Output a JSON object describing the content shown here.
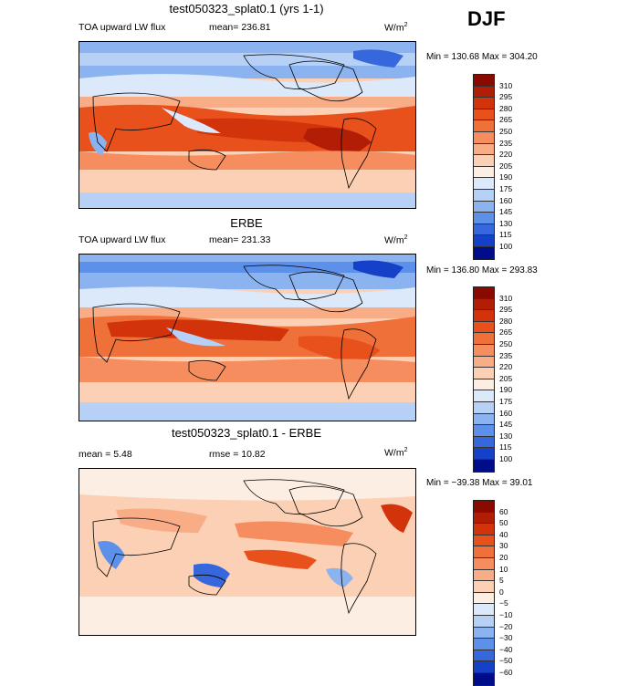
{
  "season": "DJF",
  "panels": [
    {
      "title": "test050323_splat0.1 (yrs 1-1)",
      "left_text": "TOA upward LW flux",
      "mean_text": "mean= 236.81",
      "units": "W/m",
      "units_exp": "2",
      "minmax": "Min = 130.68 Max = 304.20",
      "levels": [
        "310",
        "295",
        "280",
        "265",
        "250",
        "235",
        "220",
        "205",
        "190",
        "175",
        "160",
        "145",
        "130",
        "115",
        "100"
      ]
    },
    {
      "title": "ERBE",
      "left_text": "TOA upward LW flux",
      "mean_text": "mean= 231.33",
      "units": "W/m",
      "units_exp": "2",
      "minmax": "Min = 136.80 Max = 293.83",
      "levels": [
        "310",
        "295",
        "280",
        "265",
        "250",
        "235",
        "220",
        "205",
        "190",
        "175",
        "160",
        "145",
        "130",
        "115",
        "100"
      ]
    },
    {
      "title": "test050323_splat0.1 - ERBE",
      "left_text": "mean =    5.48",
      "mean_text": "rmse =   10.82",
      "units": "W/m",
      "units_exp": "2",
      "minmax": "Min = −39.38 Max =  39.01",
      "levels": [
        "60",
        "50",
        "40",
        "30",
        "20",
        "10",
        "5",
        "0",
        "−5",
        "−10",
        "−20",
        "−30",
        "−40",
        "−50",
        "−60"
      ]
    }
  ],
  "colors": {
    "abs_scale": [
      "#8b0a00",
      "#b11d05",
      "#d3330b",
      "#e8501c",
      "#f0703a",
      "#f58d5e",
      "#f8ad87",
      "#fbd0b4",
      "#fdeee3",
      "#dbe9fb",
      "#b6d0f6",
      "#8bb3ef",
      "#5d90e8",
      "#3767dc",
      "#1540c8",
      "#000d8a"
    ],
    "diff_scale": [
      "#8b0a00",
      "#b11d05",
      "#d3330b",
      "#e8501c",
      "#f0703a",
      "#f58d5e",
      "#f8ad87",
      "#fbd0b4",
      "#fdeee3",
      "#dbe9fb",
      "#b6d0f6",
      "#8bb3ef",
      "#5d90e8",
      "#3767dc",
      "#1540c8",
      "#000d8a"
    ]
  }
}
